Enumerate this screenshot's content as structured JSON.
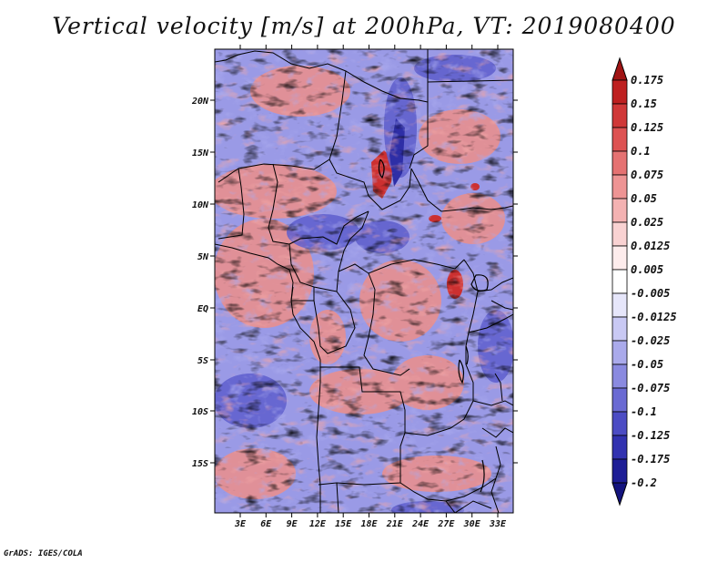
{
  "title": "Vertical velocity [m/s] at 200hPa, VT: 2019080400",
  "footer": "GrADS: IGES/COLA",
  "map": {
    "variable": "Vertical velocity",
    "units": "m/s",
    "level": "200hPa",
    "valid_time": "2019080400",
    "lat_ticks": [
      "20N",
      "15N",
      "10N",
      "5N",
      "EQ",
      "5S",
      "10S",
      "15S"
    ],
    "lon_ticks": [
      "3E",
      "6E",
      "9E",
      "12E",
      "15E",
      "18E",
      "21E",
      "24E",
      "27E",
      "30E",
      "33E"
    ]
  },
  "colorbar": {
    "labels": [
      "0.175",
      "0.15",
      "0.125",
      "0.1",
      "0.075",
      "0.05",
      "0.025",
      "0.0125",
      "0.005",
      "-0.005",
      "-0.0125",
      "-0.025",
      "-0.05",
      "-0.075",
      "-0.1",
      "-0.125",
      "-0.175",
      "-0.2"
    ],
    "colors": [
      "#a01414",
      "#be2020",
      "#d03838",
      "#dd5252",
      "#e57272",
      "#ee9494",
      "#f4b2b2",
      "#f9d2d2",
      "#fdecec",
      "#ffffff",
      "#e6e6fa",
      "#c9c9f4",
      "#aaaaeb",
      "#8a8ae0",
      "#6a6ad3",
      "#4c4cc4",
      "#3232b0",
      "#1e1e96",
      "#14147e"
    ]
  }
}
